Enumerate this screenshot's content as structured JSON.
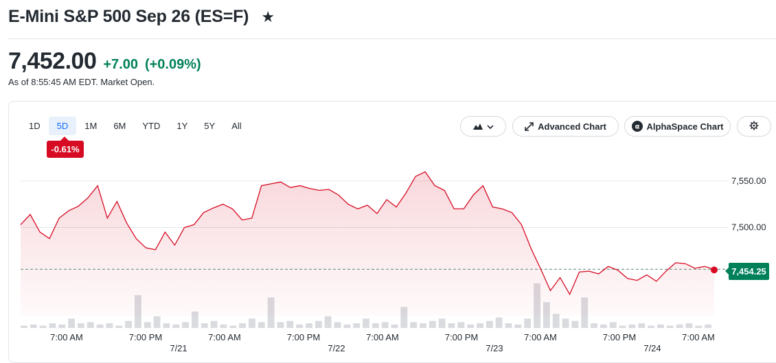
{
  "header": {
    "title": "E-Mini S&P 500 Sep 26 (ES=F)",
    "price": "7,452.00",
    "change": "+7.00",
    "change_pct": "(+0.09%)",
    "as_of": "As of 8:55:45 AM EDT. Market Open."
  },
  "toolbar": {
    "ranges": [
      "1D",
      "5D",
      "1M",
      "6M",
      "YTD",
      "1Y",
      "5Y",
      "All"
    ],
    "active_range": "5D",
    "range_change": "-0.61%",
    "advanced_chart_label": "Advanced Chart",
    "alphaspace_label": "AlphaSpace Chart"
  },
  "colors": {
    "line": "#d60a22",
    "positive": "#008059",
    "accent": "#0f69ff"
  },
  "chart_data": {
    "type": "area",
    "ylim": [
      7405,
      7575
    ],
    "y_ticks": [
      "7,550.00",
      "7,500.00"
    ],
    "y_tick_values": [
      7550,
      7500
    ],
    "x_tick_labels": [
      "7:00 AM",
      "7:00 PM",
      "7:00 AM",
      "7:00 PM",
      "7:00 AM",
      "7:00 PM",
      "7:00 AM",
      "7:00 PM",
      "7:00 AM"
    ],
    "day_labels": [
      "7/21",
      "7/22",
      "7/23",
      "7/24"
    ],
    "reference_line": 7455,
    "current_value": "7,454.25",
    "current_value_num": 7454.25,
    "price_series": [
      7503,
      7514,
      7495,
      7488,
      7510,
      7518,
      7523,
      7532,
      7545,
      7510,
      7528,
      7505,
      7488,
      7478,
      7476,
      7495,
      7481,
      7500,
      7503,
      7516,
      7521,
      7525,
      7520,
      7508,
      7510,
      7545,
      7547,
      7549,
      7543,
      7545,
      7542,
      7540,
      7541,
      7535,
      7525,
      7520,
      7524,
      7515,
      7530,
      7522,
      7537,
      7555,
      7560,
      7545,
      7540,
      7520,
      7520,
      7535,
      7545,
      7522,
      7520,
      7516,
      7503,
      7477,
      7455,
      7432,
      7446,
      7428,
      7452,
      7453,
      7450,
      7458,
      7454,
      7445,
      7443,
      7449,
      7442,
      7453,
      7462,
      7461,
      7456,
      7458,
      7455
    ],
    "volume_series": [
      2,
      3,
      2,
      4,
      3,
      8,
      4,
      5,
      3,
      4,
      2,
      6,
      28,
      5,
      10,
      4,
      3,
      5,
      14,
      4,
      6,
      3,
      2,
      4,
      8,
      5,
      26,
      5,
      6,
      3,
      4,
      6,
      10,
      5,
      3,
      4,
      8,
      4,
      5,
      3,
      18,
      5,
      4,
      6,
      8,
      4,
      5,
      3,
      4,
      6,
      9,
      4,
      3,
      8,
      38,
      22,
      12,
      8,
      6,
      26,
      4,
      3,
      5,
      2,
      3,
      4,
      2,
      3,
      2,
      3,
      4,
      2,
      3
    ]
  }
}
